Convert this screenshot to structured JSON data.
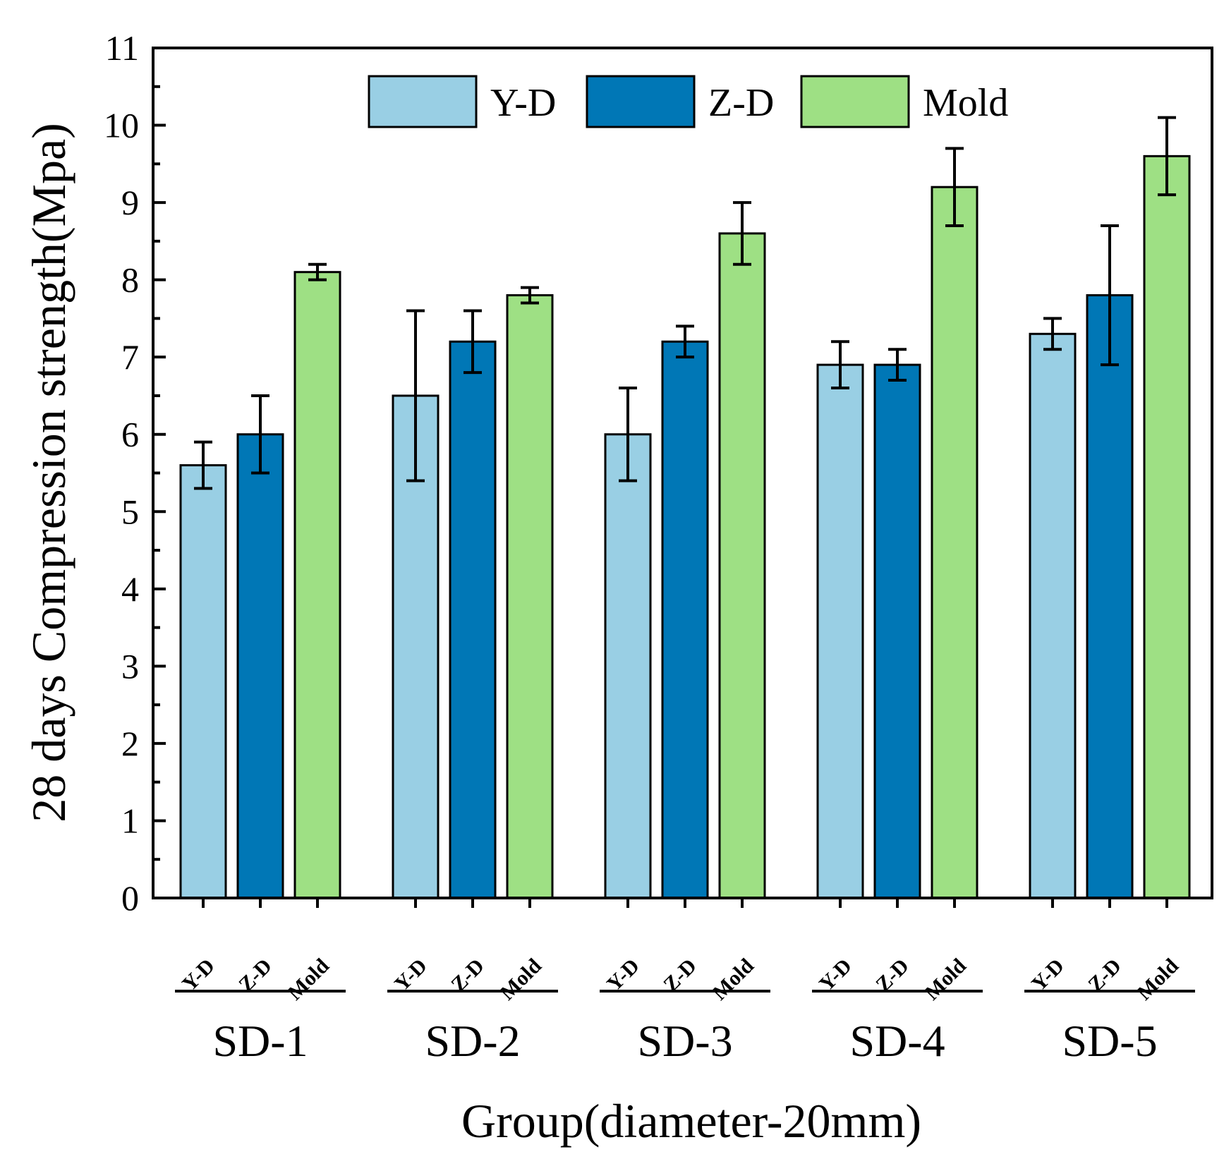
{
  "chart_data": {
    "type": "bar",
    "title": "",
    "xlabel": "Group(diameter-20mm)",
    "ylabel": "28 days Compression strength(Mpa)",
    "ylim": [
      0,
      11
    ],
    "yticks": [
      0,
      1,
      2,
      3,
      4,
      5,
      6,
      7,
      8,
      9,
      10,
      11
    ],
    "categories": [
      "SD-1",
      "SD-2",
      "SD-3",
      "SD-4",
      "SD-5"
    ],
    "series": [
      {
        "name": "Y-D",
        "color": "#99cfe4",
        "values": [
          5.6,
          6.5,
          6.0,
          6.9,
          7.3
        ],
        "errors": [
          0.3,
          1.1,
          0.6,
          0.3,
          0.2
        ]
      },
      {
        "name": "Z-D",
        "color": "#0077b6",
        "values": [
          6.0,
          7.2,
          7.2,
          6.9,
          7.8
        ],
        "errors": [
          0.5,
          0.4,
          0.2,
          0.2,
          0.9
        ]
      },
      {
        "name": "Mold",
        "color": "#9ee084",
        "values": [
          8.1,
          7.8,
          8.6,
          9.2,
          9.6
        ],
        "errors": [
          0.1,
          0.1,
          0.4,
          0.5,
          0.5
        ]
      }
    ],
    "legend_position": "top-center",
    "grid": false
  }
}
